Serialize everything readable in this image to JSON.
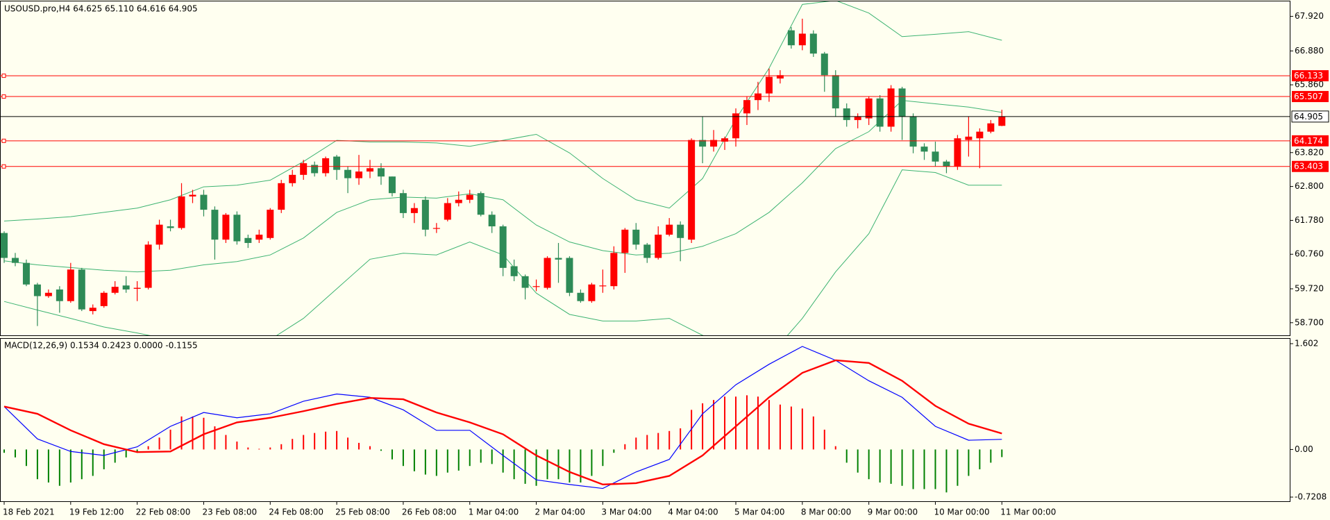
{
  "chart_data": [
    {
      "type": "candlestick",
      "title": "USOUSD.pro,H4  64.625 65.110 64.616 64.905",
      "categories": [
        "18 Feb 2021",
        null,
        null,
        null,
        null,
        null,
        "19 Feb 12:00",
        null,
        null,
        null,
        null,
        null,
        "22 Feb 08:00",
        null,
        null,
        null,
        null,
        null,
        "23 Feb 08:00",
        null,
        null,
        null,
        null,
        null,
        "24 Feb 08:00",
        null,
        null,
        null,
        null,
        null,
        "25 Feb 08:00",
        null,
        null,
        null,
        null,
        null,
        "26 Feb 08:00",
        null,
        null,
        null,
        null,
        null,
        "1 Mar 04:00",
        null,
        null,
        null,
        null,
        null,
        "2 Mar 04:00",
        null,
        null,
        null,
        null,
        null,
        "3 Mar 04:00",
        null,
        null,
        null,
        null,
        null,
        "4 Mar 04:00",
        null,
        null,
        null,
        null,
        null,
        "5 Mar 04:00",
        null,
        null,
        null,
        null,
        null,
        "8 Mar 00:00",
        null,
        null,
        null,
        null,
        null,
        "9 Mar 00:00",
        null,
        null,
        null,
        null,
        null,
        "10 Mar 00:00",
        null,
        null,
        null,
        null,
        null,
        "11 Mar 00:00"
      ],
      "open": [
        61.4,
        60.65,
        60.5,
        59.85,
        59.5,
        59.7,
        59.35,
        60.3,
        59.05,
        59.2,
        59.6,
        59.82,
        59.72,
        59.75,
        61.05,
        61.6,
        61.55,
        62.5,
        62.55,
        62.1,
        61.2,
        61.95,
        61.25,
        61.2,
        61.25,
        62.1,
        62.9,
        63.15,
        63.45,
        63.2,
        63.7,
        63.3,
        63.05,
        63.25,
        63.35,
        63.1,
        62.6,
        62.0,
        62.4,
        61.55,
        61.8,
        62.3,
        62.4,
        62.6,
        61.95,
        61.6,
        60.4,
        60.1,
        59.8,
        59.75,
        60.65,
        60.65,
        59.6,
        59.35,
        59.8,
        59.8,
        60.8,
        61.5,
        61.05,
        60.65,
        61.35,
        61.65,
        61.2,
        64.2,
        64.0,
        64.15,
        64.25,
        65.0,
        65.4,
        65.6,
        66.05,
        67.5,
        67.05,
        67.4,
        66.8,
        66.15,
        65.15,
        64.8,
        64.85,
        65.45,
        64.6,
        65.75,
        64.9,
        64.0,
        63.85,
        63.55,
        63.4,
        64.2,
        64.25,
        64.45,
        64.625
      ],
      "high": [
        61.45,
        60.8,
        60.6,
        59.9,
        59.7,
        59.8,
        60.5,
        60.35,
        59.25,
        59.65,
        59.95,
        60.1,
        59.95,
        61.15,
        61.8,
        61.8,
        62.9,
        62.7,
        62.7,
        62.2,
        62.0,
        62.05,
        61.35,
        61.5,
        62.15,
        63.0,
        63.3,
        63.6,
        63.55,
        63.7,
        63.75,
        63.4,
        63.75,
        63.6,
        63.5,
        63.1,
        62.7,
        62.3,
        62.5,
        61.7,
        62.45,
        62.65,
        62.7,
        62.65,
        62.05,
        61.65,
        60.6,
        60.15,
        60.0,
        60.7,
        61.1,
        60.7,
        59.7,
        59.9,
        60.3,
        61.0,
        61.55,
        61.7,
        61.1,
        61.6,
        61.85,
        61.75,
        64.25,
        64.9,
        64.5,
        64.3,
        65.15,
        65.5,
        65.95,
        66.35,
        66.3,
        67.6,
        67.85,
        67.5,
        66.85,
        66.3,
        65.3,
        65.0,
        65.5,
        65.55,
        65.85,
        65.8,
        65.0,
        64.1,
        64.15,
        63.6,
        64.35,
        64.9,
        64.55,
        64.8,
        65.11
      ],
      "low": [
        60.5,
        60.4,
        59.8,
        58.6,
        59.45,
        59.0,
        59.3,
        59.05,
        58.95,
        59.15,
        59.55,
        59.6,
        59.35,
        59.7,
        60.9,
        61.45,
        61.5,
        62.3,
        61.9,
        60.6,
        61.1,
        61.05,
        60.95,
        61.1,
        61.2,
        62.0,
        62.8,
        63.0,
        63.1,
        63.1,
        63.0,
        62.6,
        62.85,
        63.05,
        62.85,
        62.5,
        61.85,
        61.7,
        61.3,
        61.4,
        61.75,
        62.2,
        62.3,
        61.9,
        61.4,
        60.1,
        59.95,
        59.4,
        59.65,
        59.7,
        59.9,
        59.5,
        59.3,
        59.3,
        59.6,
        59.7,
        60.2,
        60.9,
        60.5,
        60.6,
        61.3,
        60.55,
        61.1,
        63.5,
        63.85,
        63.9,
        64.0,
        64.65,
        65.1,
        65.35,
        65.9,
        66.95,
        66.9,
        66.7,
        65.65,
        64.9,
        64.6,
        64.55,
        64.65,
        64.45,
        64.45,
        64.2,
        63.8,
        63.6,
        63.4,
        63.2,
        63.3,
        63.7,
        63.35,
        64.4,
        64.616
      ],
      "close": [
        60.65,
        60.5,
        59.85,
        59.5,
        59.6,
        59.35,
        60.3,
        59.1,
        59.15,
        59.6,
        59.78,
        59.7,
        59.75,
        61.05,
        61.65,
        61.55,
        62.5,
        62.55,
        62.1,
        61.2,
        61.95,
        61.15,
        61.1,
        61.35,
        62.1,
        62.9,
        63.15,
        63.5,
        63.2,
        63.65,
        63.3,
        63.05,
        63.25,
        63.35,
        63.1,
        62.6,
        62.0,
        62.15,
        61.5,
        61.55,
        62.3,
        62.4,
        62.55,
        61.95,
        61.6,
        60.35,
        60.1,
        59.75,
        59.8,
        60.65,
        60.6,
        59.6,
        59.35,
        59.85,
        59.82,
        60.8,
        61.5,
        61.05,
        60.65,
        61.35,
        61.65,
        61.25,
        64.2,
        64.0,
        64.2,
        64.25,
        65.0,
        65.4,
        65.6,
        66.1,
        66.15,
        67.05,
        67.4,
        66.8,
        66.15,
        65.15,
        64.8,
        64.9,
        65.45,
        64.6,
        65.75,
        64.9,
        64.0,
        63.85,
        63.55,
        63.4,
        64.25,
        64.3,
        64.45,
        64.7,
        64.905
      ],
      "up_color": "#ff0000",
      "down_color": "#2e8b57",
      "band_x": [
        0,
        3,
        6,
        9,
        12,
        15,
        18,
        21,
        24,
        27,
        30,
        33,
        36,
        39,
        42,
        45,
        48,
        51,
        54,
        57,
        60,
        63,
        66,
        69,
        72,
        75,
        78,
        81,
        84,
        87,
        90
      ],
      "bands": [
        {
          "color": "#3cb371",
          "values": [
            61.76,
            61.82,
            61.89,
            62.02,
            62.15,
            62.4,
            62.79,
            62.84,
            62.99,
            63.55,
            64.19,
            64.14,
            64.14,
            64.11,
            64.01,
            64.19,
            64.37,
            63.81,
            63.04,
            62.4,
            62.15,
            63.04,
            64.83,
            66.36,
            68.28,
            68.4,
            68.02,
            67.31,
            67.38,
            67.46,
            67.2
          ]
        },
        {
          "color": "#3cb371",
          "values": [
            60.56,
            60.44,
            60.36,
            60.28,
            60.23,
            60.28,
            60.44,
            60.54,
            60.74,
            61.25,
            62.02,
            62.4,
            62.48,
            62.45,
            62.58,
            62.4,
            61.64,
            61.13,
            60.87,
            60.74,
            60.79,
            61.0,
            61.38,
            62.02,
            62.91,
            63.94,
            64.45,
            65.39,
            65.29,
            65.19,
            65.03
          ]
        },
        {
          "color": "#3cb371",
          "values": [
            59.34,
            59.08,
            58.83,
            58.57,
            58.39,
            58.19,
            58.19,
            58.19,
            58.19,
            58.83,
            59.72,
            60.61,
            60.79,
            60.74,
            61.13,
            60.74,
            59.59,
            58.95,
            58.75,
            58.75,
            58.83,
            58.32,
            57.93,
            57.68,
            58.83,
            60.23,
            61.38,
            63.3,
            63.22,
            62.84,
            62.84
          ]
        }
      ],
      "levels": [
        66.133,
        65.507,
        64.174,
        63.403
      ],
      "level_color": "#ff0000",
      "last_price": 64.905,
      "last_price_color": "#000000",
      "ylim": [
        58.32,
        68.35
      ],
      "yticks": [
        {
          "value": 67.92,
          "label": "67.920"
        },
        {
          "value": 66.88,
          "label": "66.880"
        },
        {
          "value": 65.86,
          "label": "65.860"
        },
        {
          "value": 63.82,
          "label": "63.820"
        },
        {
          "value": 62.8,
          "label": "62.800"
        },
        {
          "value": 61.78,
          "label": "61.780"
        },
        {
          "value": 60.76,
          "label": "60.760"
        },
        {
          "value": 59.72,
          "label": "59.720"
        },
        {
          "value": 58.7,
          "label": "58.700"
        }
      ]
    },
    {
      "type": "macd",
      "title": "MACD(12,26,9) 0.1534 0.2423 0.0000 -0.1155",
      "histogram": {
        "pos_color": "#ff0000",
        "neg_color": "#008000",
        "values": [
          -0.05,
          -0.12,
          -0.25,
          -0.45,
          -0.5,
          -0.55,
          -0.5,
          -0.45,
          -0.4,
          -0.3,
          -0.2,
          -0.12,
          -0.05,
          0.05,
          0.18,
          0.3,
          0.5,
          0.5,
          0.48,
          0.35,
          0.22,
          0.12,
          0.03,
          0.01,
          0.03,
          0.08,
          0.16,
          0.22,
          0.25,
          0.27,
          0.28,
          0.18,
          0.1,
          0.05,
          -0.02,
          -0.15,
          -0.25,
          -0.33,
          -0.38,
          -0.4,
          -0.35,
          -0.32,
          -0.25,
          -0.2,
          -0.22,
          -0.35,
          -0.45,
          -0.52,
          -0.55,
          -0.45,
          -0.45,
          -0.5,
          -0.5,
          -0.4,
          -0.25,
          -0.05,
          0.08,
          0.18,
          0.22,
          0.25,
          0.28,
          0.32,
          0.6,
          0.7,
          0.75,
          0.8,
          0.8,
          0.82,
          0.8,
          0.75,
          0.68,
          0.65,
          0.62,
          0.5,
          0.3,
          0.05,
          -0.2,
          -0.35,
          -0.45,
          -0.5,
          -0.52,
          -0.55,
          -0.6,
          -0.6,
          -0.6,
          -0.65,
          -0.55,
          -0.4,
          -0.3,
          -0.2,
          -0.1155
        ]
      },
      "line_x": [
        0,
        3,
        6,
        9,
        12,
        15,
        18,
        21,
        24,
        27,
        30,
        33,
        36,
        39,
        42,
        45,
        48,
        51,
        54,
        57,
        60,
        63,
        66,
        69,
        72,
        75,
        78,
        81,
        84,
        87,
        90
      ],
      "series": [
        {
          "color": "#0000ff",
          "values": [
            0.65,
            0.16,
            -0.03,
            -0.09,
            0.04,
            0.35,
            0.56,
            0.48,
            0.54,
            0.73,
            0.84,
            0.79,
            0.6,
            0.29,
            0.29,
            -0.09,
            -0.46,
            -0.53,
            -0.59,
            -0.34,
            -0.15,
            0.54,
            0.98,
            1.29,
            1.56,
            1.35,
            1.04,
            0.79,
            0.35,
            0.14,
            0.1534
          ]
        },
        {
          "color": "#ff0000",
          "values": [
            0.65,
            0.54,
            0.29,
            0.08,
            -0.04,
            -0.03,
            0.23,
            0.41,
            0.48,
            0.58,
            0.69,
            0.78,
            0.76,
            0.56,
            0.41,
            0.23,
            -0.09,
            -0.34,
            -0.53,
            -0.51,
            -0.4,
            -0.09,
            0.35,
            0.79,
            1.16,
            1.35,
            1.31,
            1.04,
            0.66,
            0.39,
            0.2423
          ]
        }
      ],
      "ylim": [
        -0.7208,
        1.602
      ],
      "yticks": [
        1.602,
        {
          "value": 0,
          "label": "0.00"
        },
        -0.7208
      ]
    }
  ]
}
